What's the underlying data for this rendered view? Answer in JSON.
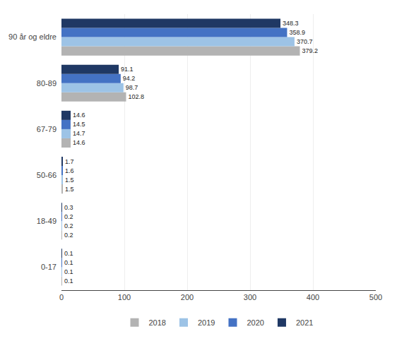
{
  "chart_data": {
    "type": "bar",
    "orientation": "horizontal",
    "categories": [
      "0-17",
      "18-49",
      "50-66",
      "67-79",
      "80-89",
      "90 år og eldre"
    ],
    "series": [
      {
        "name": "2018",
        "color": "#b3b3b3",
        "values": [
          0.1,
          0.2,
          1.5,
          14.6,
          102.8,
          379.2
        ]
      },
      {
        "name": "2019",
        "color": "#9dc3e6",
        "values": [
          0.1,
          0.2,
          1.5,
          14.7,
          98.7,
          370.7
        ]
      },
      {
        "name": "2020",
        "color": "#4472c4",
        "values": [
          0.1,
          0.2,
          1.6,
          14.5,
          94.2,
          358.9
        ]
      },
      {
        "name": "2021",
        "color": "#1f3864",
        "values": [
          0.1,
          0.3,
          1.7,
          14.6,
          91.1,
          348.3
        ]
      }
    ],
    "xlim": [
      0,
      500
    ],
    "xticks": [
      0,
      100,
      200,
      300,
      400,
      500
    ],
    "grid": true,
    "data_labels": true,
    "legend": "bottom"
  }
}
